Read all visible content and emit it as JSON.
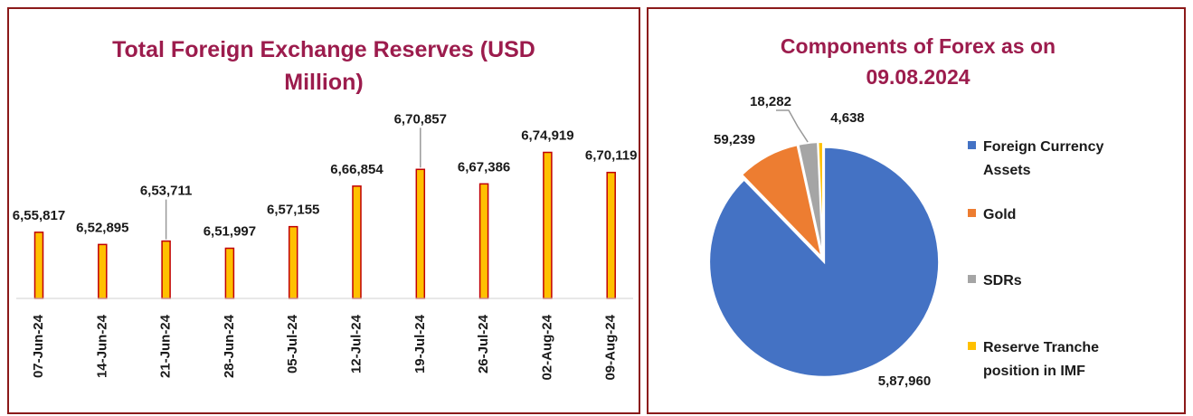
{
  "chart_data": [
    {
      "type": "bar",
      "title": "Total Foreign Exchange Reserves (USD Million)",
      "categories": [
        "07-Jun-24",
        "14-Jun-24",
        "21-Jun-24",
        "28-Jun-24",
        "05-Jul-24",
        "12-Jul-24",
        "19-Jul-24",
        "26-Jul-24",
        "02-Aug-24",
        "09-Aug-24"
      ],
      "values": [
        655817,
        652895,
        653711,
        651997,
        657155,
        666854,
        670857,
        667386,
        674919,
        670119
      ],
      "value_labels": [
        "6,55,817",
        "6,52,895",
        "6,53,711",
        "6,51,997",
        "6,57,155",
        "6,66,854",
        "6,70,857",
        "6,67,386",
        "6,74,919",
        "6,70,119"
      ],
      "color": "#ffc000",
      "edge_color": "#c00000",
      "ylim": [
        640000,
        680000
      ]
    },
    {
      "type": "pie",
      "title": "Components of Forex as on 09.08.2024",
      "categories": [
        "Foreign Currency Assets",
        "Gold",
        "SDRs",
        "Reserve Tranche position in IMF"
      ],
      "values": [
        587960,
        59239,
        18282,
        4638
      ],
      "value_labels": [
        "5,87,960",
        "59,239",
        "18,282",
        "4,638"
      ],
      "colors": [
        "#4472c4",
        "#ed7d31",
        "#a5a5a5",
        "#ffc000"
      ]
    }
  ]
}
